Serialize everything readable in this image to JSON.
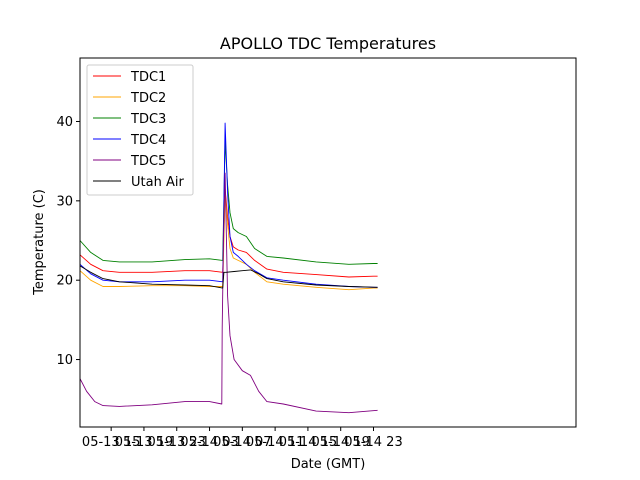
{
  "chart_data": {
    "type": "line",
    "title": "APOLLO TDC Temperatures",
    "xlabel": "Date (GMT)",
    "ylabel": "Temperature (C)",
    "xlim": [
      11.2,
      71.7
    ],
    "ylim": [
      1.5,
      48
    ],
    "x_ticks": [
      {
        "value": 15,
        "label": "05-13 15"
      },
      {
        "value": 19,
        "label": "05-13 19"
      },
      {
        "value": 23,
        "label": "05-13 23"
      },
      {
        "value": 27,
        "label": "05-14 03"
      },
      {
        "value": 31,
        "label": "05-14 07"
      },
      {
        "value": 35,
        "label": "05-14 11"
      },
      {
        "value": 39,
        "label": "05-14 15"
      },
      {
        "value": 43,
        "label": "05-14 19"
      },
      {
        "value": 47,
        "label": "05-14 23"
      }
    ],
    "y_ticks": [
      10,
      20,
      30,
      40
    ],
    "legend_position": "top-left",
    "x_units": "hours since 05-13 00 GMT",
    "series": [
      {
        "name": "TDC1",
        "color": "#ff0000",
        "x": [
          11.2,
          12.5,
          14.0,
          16.0,
          20.0,
          24.0,
          27.0,
          28.6,
          28.9,
          29.2,
          29.5,
          29.9,
          30.5,
          31.5,
          32.5,
          34.0,
          36.0,
          40.0,
          44.0,
          47.0,
          47.5
        ],
        "y": [
          23.2,
          22.0,
          21.2,
          21.0,
          21.0,
          21.2,
          21.2,
          21.0,
          31.5,
          28.0,
          25.5,
          24.2,
          23.8,
          23.5,
          22.5,
          21.4,
          21.0,
          20.7,
          20.4,
          20.5,
          20.5
        ]
      },
      {
        "name": "TDC2",
        "color": "#ffa500",
        "x": [
          11.2,
          12.5,
          14.0,
          16.0,
          20.0,
          24.0,
          27.0,
          28.6,
          28.9,
          29.2,
          29.5,
          29.9,
          30.5,
          31.5,
          32.5,
          34.0,
          36.0,
          40.0,
          44.0,
          47.0,
          47.5
        ],
        "y": [
          21.2,
          20.0,
          19.2,
          19.2,
          19.3,
          19.3,
          19.2,
          19.2,
          31.0,
          27.0,
          24.0,
          22.8,
          22.5,
          22.0,
          21.0,
          19.8,
          19.5,
          19.1,
          18.8,
          19.0,
          19.0
        ]
      },
      {
        "name": "TDC3",
        "color": "#008000",
        "x": [
          11.2,
          12.5,
          14.0,
          16.0,
          20.0,
          24.0,
          27.0,
          28.6,
          28.9,
          29.2,
          29.5,
          29.9,
          30.5,
          31.5,
          32.5,
          34.0,
          36.0,
          40.0,
          44.0,
          47.0,
          47.5
        ],
        "y": [
          25.0,
          23.5,
          22.5,
          22.3,
          22.3,
          22.6,
          22.7,
          22.5,
          37.5,
          32.0,
          28.5,
          26.5,
          26.0,
          25.5,
          24.0,
          23.0,
          22.8,
          22.3,
          22.0,
          22.1,
          22.1
        ]
      },
      {
        "name": "TDC4",
        "color": "#0000ff",
        "x": [
          11.2,
          12.5,
          14.0,
          16.0,
          20.0,
          24.0,
          27.0,
          28.6,
          28.9,
          29.2,
          29.5,
          29.9,
          30.5,
          31.5,
          32.5,
          34.0,
          36.0,
          40.0,
          44.0,
          47.0,
          47.5
        ],
        "y": [
          22.0,
          20.8,
          20.0,
          19.8,
          19.8,
          20.0,
          20.0,
          19.8,
          39.8,
          31.0,
          25.5,
          23.5,
          23.0,
          22.0,
          21.2,
          20.3,
          20.0,
          19.5,
          19.2,
          19.1,
          19.1
        ]
      },
      {
        "name": "TDC5",
        "color": "#800080",
        "x": [
          11.2,
          12.0,
          13.0,
          14.0,
          16.0,
          20.0,
          24.0,
          27.0,
          28.5,
          28.55,
          28.7,
          28.9,
          29.2,
          29.5,
          30.0,
          31.0,
          32.0,
          33.0,
          34.0,
          36.0,
          40.0,
          44.0,
          47.5
        ],
        "y": [
          7.6,
          6.0,
          4.7,
          4.2,
          4.1,
          4.3,
          4.7,
          4.7,
          4.4,
          14.0,
          25.0,
          33.5,
          18.0,
          13.0,
          10.0,
          8.6,
          8.0,
          6.0,
          4.7,
          4.4,
          3.5,
          3.3,
          3.6
        ]
      },
      {
        "name": "Utah Air",
        "color": "#000000",
        "x": [
          11.2,
          12.5,
          14.0,
          16.0,
          20.0,
          24.0,
          27.0,
          28.6,
          28.75,
          29.0,
          30.0,
          31.0,
          32.0,
          33.0,
          34.0,
          36.0,
          40.0,
          44.0,
          47.5
        ],
        "y": [
          21.8,
          21.0,
          20.2,
          19.8,
          19.5,
          19.4,
          19.3,
          19.0,
          21.0,
          21.0,
          21.1,
          21.2,
          21.3,
          20.8,
          20.2,
          19.8,
          19.4,
          19.2,
          19.1
        ]
      }
    ]
  }
}
